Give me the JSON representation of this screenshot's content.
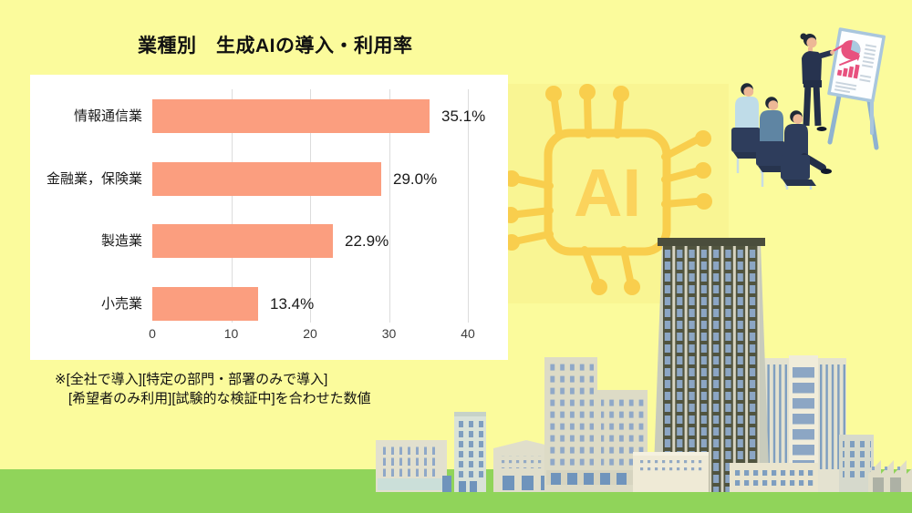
{
  "title": "業種別　生成AIの導入・利用率",
  "chart_data": {
    "type": "bar",
    "orientation": "horizontal",
    "title": "業種別　生成AIの導入・利用率",
    "categories": [
      "情報通信業",
      "金融業，保険業",
      "製造業",
      "小売業"
    ],
    "values": [
      35.1,
      29.0,
      22.9,
      13.4
    ],
    "value_labels": [
      "35.1%",
      "29.0%",
      "22.9%",
      "13.4%"
    ],
    "xlabel": "",
    "ylabel": "",
    "xlim": [
      0,
      40
    ],
    "xticks": [
      0,
      10,
      20,
      30,
      40
    ],
    "grid": true,
    "legend": "none",
    "bar_color": "#FB9E7F",
    "plot_background": "#FFFFFF"
  },
  "note": {
    "lines": [
      "※[全社で導入][特定の部門・部署のみで導入]",
      "[希望者のみ利用][試験的な検証中]を合わせた数値"
    ]
  },
  "illustrations": {
    "ai_chip": {
      "label": "AI",
      "color": "#F9CE4D"
    },
    "grass_color": "#90D45A",
    "background_color": "#FBFB9C"
  }
}
